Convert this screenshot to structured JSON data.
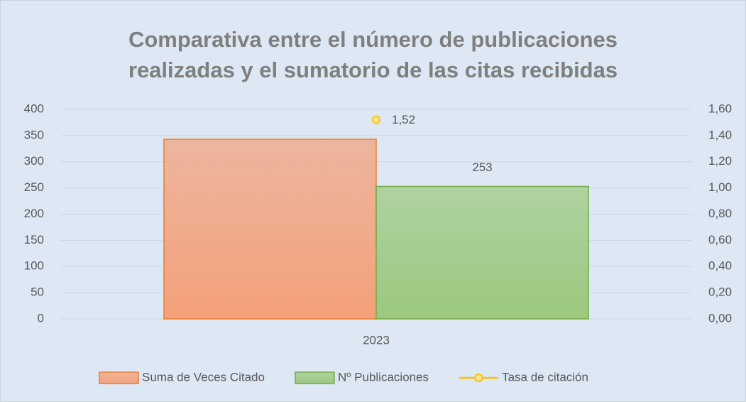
{
  "chart_data": {
    "type": "bar",
    "title": "Comparativa entre el número de publicaciones realizadas y el sumatorio de las citas recibidas",
    "categories": [
      "2023"
    ],
    "series": [
      {
        "name": "Suma de Veces Citado",
        "type": "bar",
        "color": "#f4a07a",
        "edge_color": "#ed7d31",
        "values": [
          343
        ]
      },
      {
        "name": "Nº Publicaciones",
        "type": "bar",
        "color": "#9cc87e",
        "edge_color": "#70ad47",
        "values": [
          253
        ]
      },
      {
        "name": "Tasa de citación",
        "type": "line",
        "axis": "y2",
        "color": "#ffc000",
        "values": [
          1.52
        ],
        "value_labels": [
          "1,52"
        ]
      }
    ],
    "ylim": [
      0,
      400
    ],
    "yticks": [
      0,
      50,
      100,
      150,
      200,
      250,
      300,
      350,
      400
    ],
    "y2lim": [
      0,
      1.6
    ],
    "y2ticks": [
      {
        "value": 0,
        "label": "0,00"
      },
      {
        "value": 0.2,
        "label": "0,20"
      },
      {
        "value": 0.4,
        "label": "0,40"
      },
      {
        "value": 0.6,
        "label": "0,60"
      },
      {
        "value": 0.8,
        "label": "0,80"
      },
      {
        "value": 1.0,
        "label": "1,00"
      },
      {
        "value": 1.2,
        "label": "1,20"
      },
      {
        "value": 1.4,
        "label": "1,40"
      },
      {
        "value": 1.6,
        "label": "1,60"
      }
    ],
    "grid": true,
    "legend": "bottom"
  }
}
